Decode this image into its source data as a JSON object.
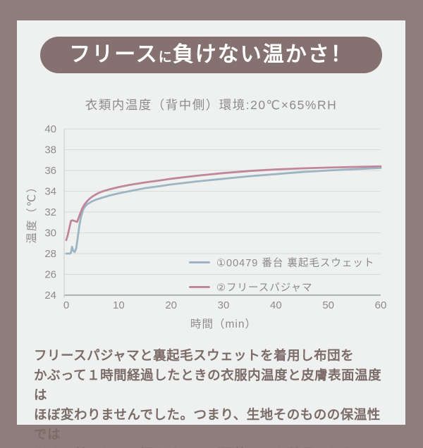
{
  "page": {
    "frame_color": "#8e7e7b",
    "card_bg": "#eff1f0"
  },
  "banner": {
    "bg": "#847170",
    "text_color": "#ffffff",
    "segments": [
      {
        "text": "フリース",
        "size": "large"
      },
      {
        "text": "に",
        "size": "small"
      },
      {
        "text": "負けない温かさ！",
        "size": "large"
      }
    ]
  },
  "footer": {
    "paragraph": "フリースパジャマと裏起毛スウェットを着用し布団を\nかぶって１時間経過したときの衣服内温度と皮膚表面温度は\nほぼ変わりませんでした。つまり、生地そのものの保温性では\nなく、着用しての温かさはほぼ同等という結果でした。"
  },
  "chart_data": {
    "type": "line",
    "title": "衣類内温度（背中側）環境:20℃×65%RH",
    "xlabel": "時間（min）",
    "ylabel": "温度（℃）",
    "xlim": [
      0,
      60
    ],
    "ylim": [
      24,
      40
    ],
    "xticks": [
      0,
      10,
      20,
      30,
      40,
      50,
      60
    ],
    "yticks": [
      24,
      26,
      28,
      30,
      32,
      34,
      36,
      38,
      40
    ],
    "grid": true,
    "grid_color": "#d9dcda",
    "axis_color": "#9c9c9c",
    "yaxis_line_color": "#c6c9c7",
    "tick_color": "#8b8b8b",
    "legend_position": "inside-bottom-right",
    "series": [
      {
        "name": "①00479 番台 裏起毛スウェット",
        "color": "#9cb4c3",
        "points": [
          [
            0,
            28.0
          ],
          [
            0.7,
            28.0
          ],
          [
            0.9,
            28.1
          ],
          [
            1.1,
            28.65
          ],
          [
            1.3,
            28.3
          ],
          [
            1.6,
            28.15
          ],
          [
            1.9,
            28.5
          ],
          [
            2.2,
            29.6
          ],
          [
            2.5,
            30.7
          ],
          [
            2.8,
            31.5
          ],
          [
            3.2,
            32.2
          ],
          [
            3.6,
            32.55
          ],
          [
            4,
            32.75
          ],
          [
            4.5,
            32.9
          ],
          [
            5,
            33.05
          ],
          [
            6,
            33.25
          ],
          [
            7,
            33.4
          ],
          [
            8,
            33.55
          ],
          [
            9,
            33.68
          ],
          [
            10,
            33.8
          ],
          [
            12,
            34.0
          ],
          [
            15,
            34.3
          ],
          [
            18,
            34.5
          ],
          [
            20,
            34.65
          ],
          [
            25,
            34.95
          ],
          [
            30,
            35.2
          ],
          [
            35,
            35.45
          ],
          [
            40,
            35.65
          ],
          [
            45,
            35.85
          ],
          [
            50,
            36.0
          ],
          [
            55,
            36.12
          ],
          [
            60,
            36.25
          ]
        ]
      },
      {
        "name": "②フリースパジャマ",
        "color": "#c0869b",
        "points": [
          [
            0,
            29.3
          ],
          [
            0.3,
            29.8
          ],
          [
            0.6,
            30.5
          ],
          [
            0.9,
            31.15
          ],
          [
            1.2,
            31.2
          ],
          [
            1.5,
            31.15
          ],
          [
            1.8,
            31.1
          ],
          [
            2.1,
            31.05
          ],
          [
            2.4,
            31.5
          ],
          [
            2.7,
            31.9
          ],
          [
            3,
            32.3
          ],
          [
            3.5,
            32.75
          ],
          [
            4,
            33.05
          ],
          [
            4.5,
            33.3
          ],
          [
            5,
            33.5
          ],
          [
            6,
            33.8
          ],
          [
            7,
            34.0
          ],
          [
            8,
            34.15
          ],
          [
            9,
            34.28
          ],
          [
            10,
            34.4
          ],
          [
            12,
            34.6
          ],
          [
            15,
            34.85
          ],
          [
            18,
            35.05
          ],
          [
            20,
            35.2
          ],
          [
            25,
            35.5
          ],
          [
            30,
            35.75
          ],
          [
            35,
            35.95
          ],
          [
            40,
            36.1
          ],
          [
            45,
            36.2
          ],
          [
            50,
            36.28
          ],
          [
            55,
            36.34
          ],
          [
            60,
            36.4
          ]
        ]
      }
    ]
  }
}
